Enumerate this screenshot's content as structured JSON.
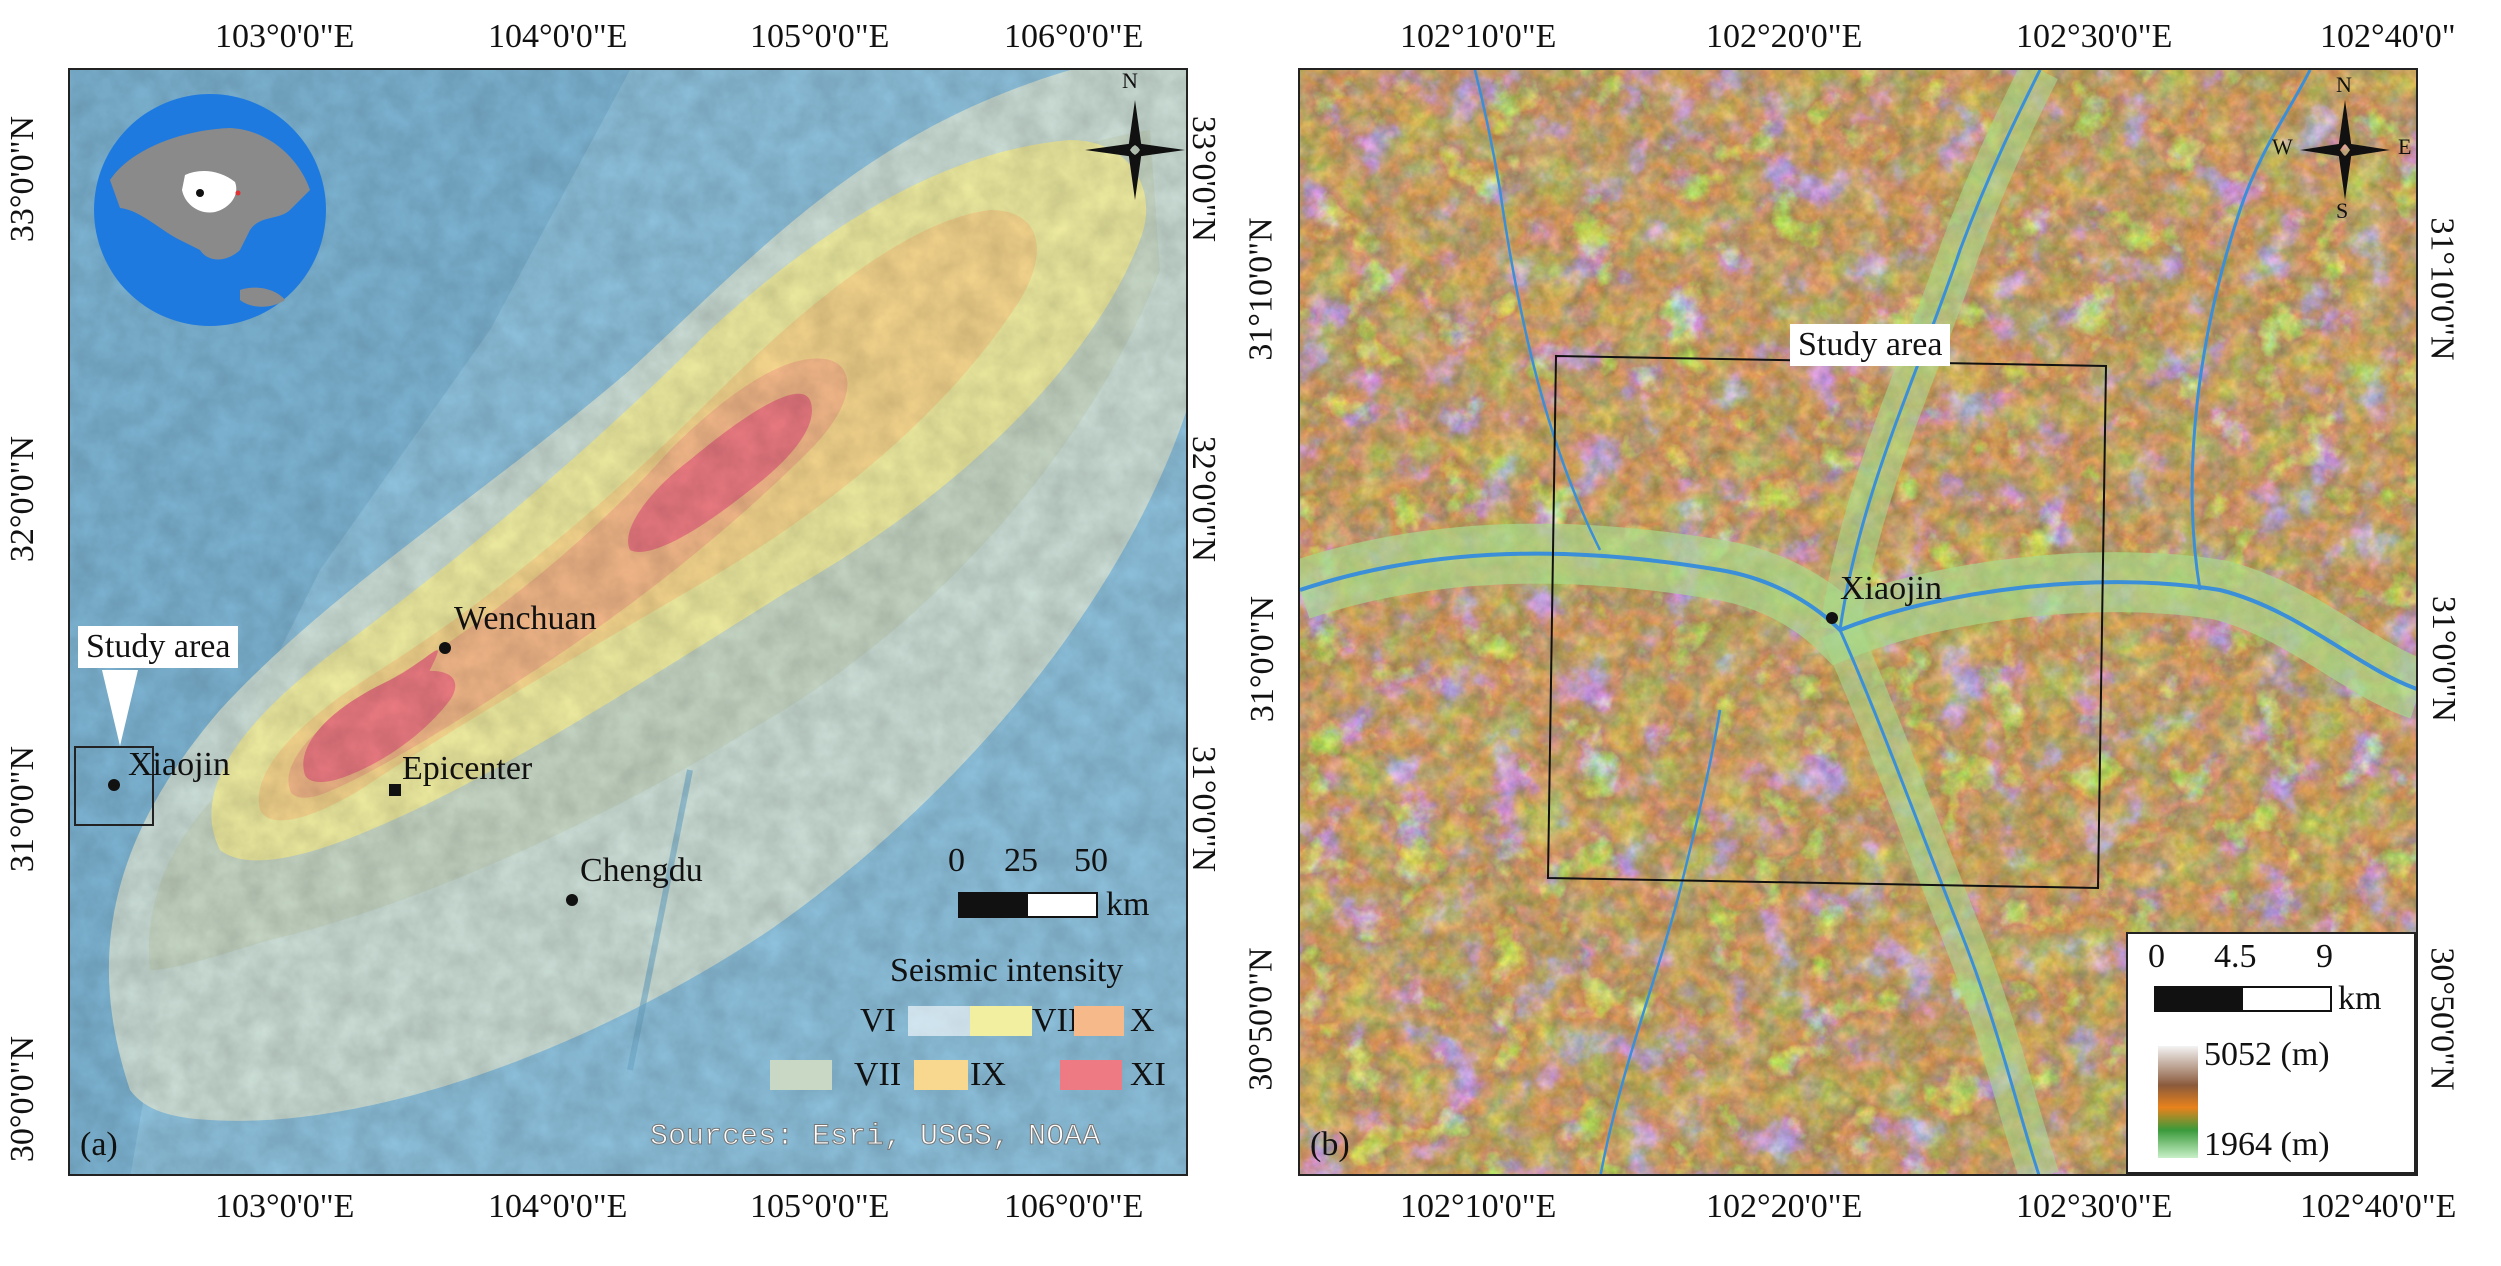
{
  "panel_a": {
    "label": "(a)",
    "top_ticks": [
      "103°0'0\"E",
      "104°0'0\"E",
      "105°0'0\"E",
      "106°0'0\"E"
    ],
    "bottom_ticks": [
      "103°0'0\"E",
      "104°0'0\"E",
      "105°0'0\"E",
      "106°0'0\"E"
    ],
    "left_ticks": [
      "33°0'0\"N",
      "32°0'0\"N",
      "31°0'0\"N",
      "30°0'0\"N"
    ],
    "right_ticks": [
      "33°0'0\"N",
      "32°0'0\"N",
      "31°0'0\"N"
    ],
    "places": {
      "wenchuan": "Wenchuan",
      "epicenter": "Epicenter",
      "chengdu": "Chengdu",
      "xiaojin": "Xiaojin"
    },
    "study_area_callout": "Study area",
    "scale": {
      "ticks": [
        "0",
        "25",
        "50"
      ],
      "unit": "km"
    },
    "legend": {
      "title": "Seismic intensity",
      "items": [
        {
          "label": "VI",
          "color": "#ffffff"
        },
        {
          "label": "VIII",
          "color": "#f3efa0"
        },
        {
          "label": "X",
          "color": "#f5b98a"
        },
        {
          "label": "VII",
          "color": "#c9d8c4"
        },
        {
          "label": "IX",
          "color": "#f8d88f"
        },
        {
          "label": "XI",
          "color": "#ee7b83"
        }
      ]
    },
    "compass_letter": "N",
    "sources": "Sources: Esri, USGS, NOAA",
    "colors": {
      "water": "#6fb3d8",
      "land_base": "#a9cfe2"
    }
  },
  "panel_b": {
    "label": "(b)",
    "top_ticks": [
      "102°10'0\"E",
      "102°20'0\"E",
      "102°30'0\"E",
      "102°40'0\""
    ],
    "bottom_ticks": [
      "102°10'0\"E",
      "102°20'0\"E",
      "102°30'0\"E",
      "102°40'0\"E"
    ],
    "left_ticks": [
      "31°10'0\"N",
      "31°0'0\"N",
      "30°50'0\"N"
    ],
    "right_ticks": [
      "31°10'0\"N",
      "31°0'0\"N",
      "30°50'0\"N"
    ],
    "study_area_label": "Study area",
    "xiaojin_label": "Xiaojin",
    "compass": {
      "n": "N",
      "s": "S",
      "w": "W",
      "e": "E"
    },
    "scale": {
      "ticks": [
        "0",
        "4.5",
        "9"
      ],
      "unit": "km"
    },
    "elevation": {
      "max": "5052 (m)",
      "min": "1964 (m)"
    },
    "colors": {
      "river": "#3a8fd8",
      "high": "#f2f2f2",
      "mid_brown": "#8a5a3c",
      "orange": "#e8821c",
      "green": "#3a9a3a",
      "low": "#c8f0c8"
    }
  }
}
